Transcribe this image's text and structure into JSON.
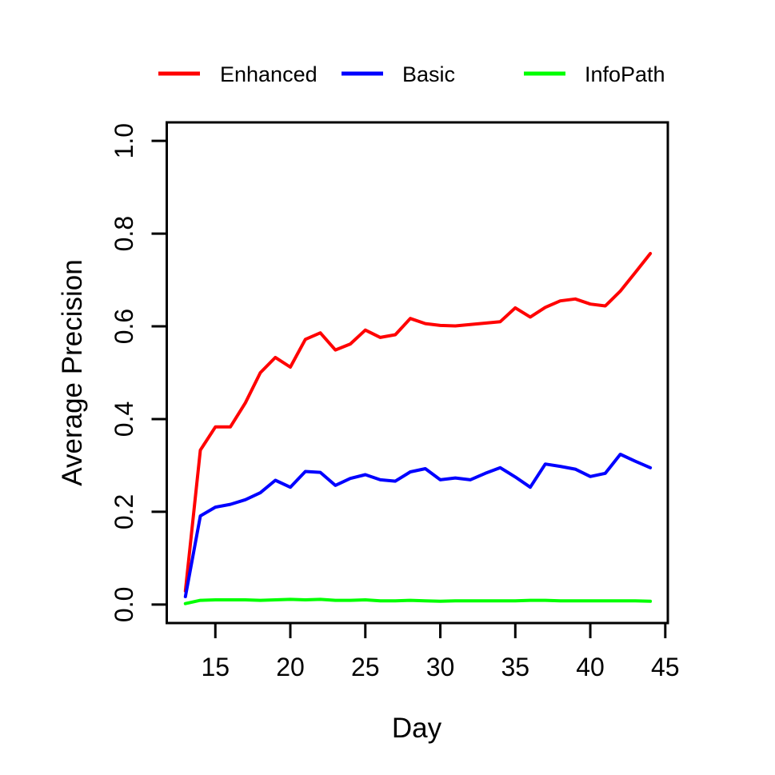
{
  "chart_data": {
    "type": "line",
    "title": "",
    "xlabel": "Day",
    "ylabel": "Average Precision",
    "x": [
      13,
      14,
      15,
      16,
      17,
      18,
      19,
      20,
      21,
      22,
      23,
      24,
      25,
      26,
      27,
      28,
      29,
      30,
      31,
      32,
      33,
      34,
      35,
      36,
      37,
      38,
      39,
      40,
      41,
      42,
      43,
      44
    ],
    "series": [
      {
        "name": "Enhanced",
        "color": "#ff0000",
        "values": [
          0.029,
          0.333,
          0.383,
          0.383,
          0.435,
          0.5,
          0.533,
          0.512,
          0.572,
          0.586,
          0.549,
          0.562,
          0.592,
          0.576,
          0.582,
          0.617,
          0.606,
          0.602,
          0.601,
          0.604,
          0.607,
          0.61,
          0.64,
          0.62,
          0.641,
          0.655,
          0.659,
          0.648,
          0.644,
          0.676,
          0.716,
          0.757
        ]
      },
      {
        "name": "Basic",
        "color": "#0000ff",
        "values": [
          0.017,
          0.191,
          0.21,
          0.216,
          0.226,
          0.241,
          0.268,
          0.253,
          0.287,
          0.285,
          0.257,
          0.272,
          0.28,
          0.269,
          0.266,
          0.286,
          0.293,
          0.269,
          0.273,
          0.269,
          0.283,
          0.295,
          0.275,
          0.253,
          0.303,
          0.298,
          0.292,
          0.276,
          0.283,
          0.324,
          0.309,
          0.295
        ]
      },
      {
        "name": "InfoPath",
        "color": "#00ff00",
        "values": [
          0.002,
          0.009,
          0.01,
          0.01,
          0.01,
          0.009,
          0.01,
          0.011,
          0.01,
          0.011,
          0.009,
          0.009,
          0.01,
          0.008,
          0.008,
          0.009,
          0.008,
          0.007,
          0.008,
          0.008,
          0.008,
          0.008,
          0.008,
          0.009,
          0.009,
          0.008,
          0.008,
          0.008,
          0.008,
          0.008,
          0.008,
          0.007
        ]
      }
    ],
    "x_ticks": [
      15,
      20,
      25,
      30,
      35,
      40,
      45
    ],
    "y_ticks": [
      "0.0",
      "0.2",
      "0.4",
      "0.6",
      "0.8",
      "1.0"
    ],
    "xlim": [
      11.76,
      45.17
    ],
    "ylim": [
      -0.04,
      1.04
    ],
    "grid": false,
    "legend_position": "top",
    "axis_color": "#000000",
    "background_color": "#ffffff"
  }
}
